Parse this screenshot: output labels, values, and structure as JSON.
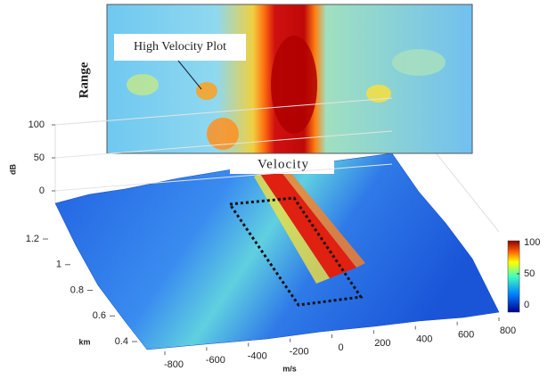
{
  "chart_data": {
    "type": "surface",
    "inset_label": "High Velocity Plot",
    "inset_ylabel": "Range",
    "inset_xlabel": "Velocity",
    "xlabel": "m/s",
    "ylabel": "km",
    "zlabel": "dB",
    "xlim": [
      -800,
      800
    ],
    "xticks": [
      -800,
      -600,
      -400,
      -200,
      0,
      200,
      400,
      600,
      800
    ],
    "ylim": [
      0.4,
      1.2
    ],
    "yticks": [
      0.4,
      0.6,
      0.8,
      1,
      1.2
    ],
    "zlim": [
      0,
      100
    ],
    "zticks": [
      0,
      50,
      100
    ],
    "clim": [
      0,
      100
    ],
    "cticks": [
      0,
      50,
      100
    ]
  }
}
